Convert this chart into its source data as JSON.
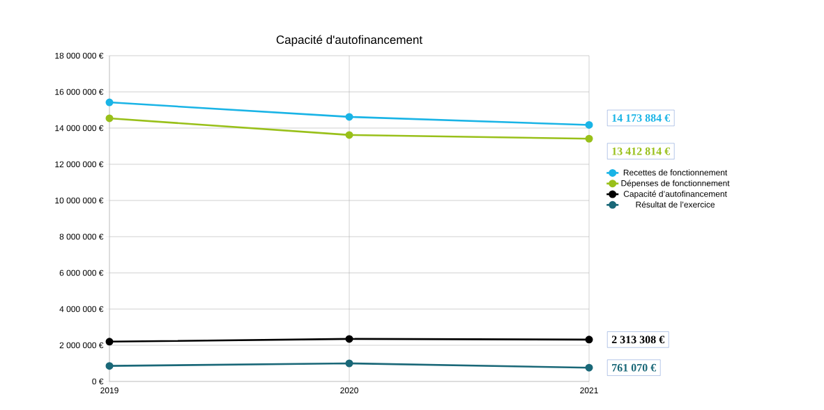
{
  "chart_data": {
    "type": "line",
    "title": "Capacité d'autofinancement",
    "x": [
      2019,
      2020,
      2021
    ],
    "xlim": [
      2019,
      2021
    ],
    "xticks": [
      2019,
      2020,
      2021
    ],
    "ylim": [
      0,
      18000000
    ],
    "yticks": [
      {
        "value": 0,
        "label": "0 €"
      },
      {
        "value": 2000000,
        "label": "2 000 000 €"
      },
      {
        "value": 4000000,
        "label": "4 000 000 €"
      },
      {
        "value": 6000000,
        "label": "6 000 000 €"
      },
      {
        "value": 8000000,
        "label": "8 000 000 €"
      },
      {
        "value": 10000000,
        "label": "10 000 000 €"
      },
      {
        "value": 12000000,
        "label": "12 000 000 €"
      },
      {
        "value": 14000000,
        "label": "14 000 000 €"
      },
      {
        "value": 16000000,
        "label": "16 000 000 €"
      },
      {
        "value": 18000000,
        "label": "18 000 000 €"
      }
    ],
    "grid": true,
    "legend": "right",
    "marker": "circle",
    "line_style": "solid",
    "series": [
      {
        "name": "Recettes de fonctionnement",
        "color": "#1ab4e6",
        "values": [
          15420000,
          14620000,
          14173884
        ],
        "value_labels": [
          null,
          null,
          "14 173 884 €"
        ]
      },
      {
        "name": "Dépenses de fonctionnement",
        "color": "#99c01a",
        "values": [
          14540000,
          13620000,
          13412814
        ],
        "value_labels": [
          null,
          null,
          "13 412 814 €"
        ]
      },
      {
        "name": "Capacité d’autofinancement",
        "color": "#000000",
        "values": [
          2200000,
          2350000,
          2313308
        ],
        "value_labels": [
          null,
          null,
          "2 313 308 €"
        ]
      },
      {
        "name": "Résultat de l’exercice",
        "color": "#1a6878",
        "values": [
          860000,
          1000000,
          761070
        ],
        "value_labels": [
          null,
          null,
          "761 070 €"
        ]
      }
    ]
  }
}
